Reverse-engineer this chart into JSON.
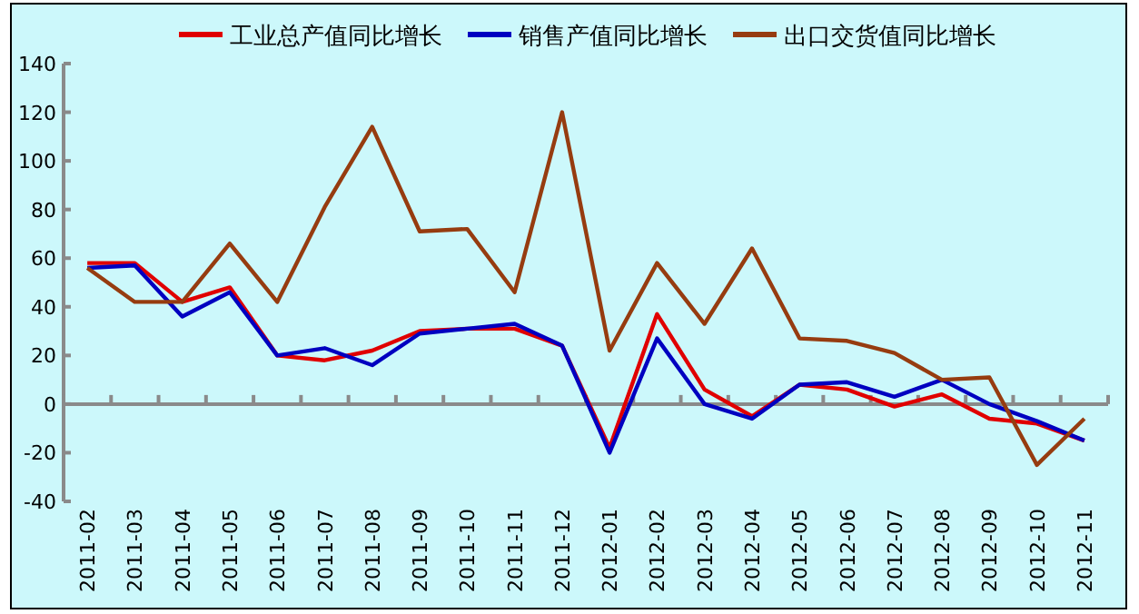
{
  "chart_data": {
    "type": "line",
    "categories": [
      "2011-02",
      "2011-03",
      "2011-04",
      "2011-05",
      "2011-06",
      "2011-07",
      "2011-08",
      "2011-09",
      "2011-10",
      "2011-11",
      "2011-12",
      "2012-01",
      "2012-02",
      "2012-03",
      "2012-04",
      "2012-05",
      "2012-06",
      "2012-07",
      "2012-08",
      "2012-09",
      "2012-10",
      "2012-11"
    ],
    "series": [
      {
        "name": "工业总产值同比增长",
        "color": "#e00000",
        "values": [
          58,
          58,
          42,
          48,
          20,
          18,
          22,
          30,
          31,
          31,
          24,
          -18,
          37,
          6,
          -5,
          8,
          6,
          -1,
          4,
          -6,
          -8,
          -15
        ]
      },
      {
        "name": "销售产值同比增长",
        "color": "#0000c0",
        "values": [
          56,
          57,
          36,
          46,
          20,
          23,
          16,
          29,
          31,
          33,
          24,
          -20,
          27,
          0,
          -6,
          8,
          9,
          3,
          10,
          0,
          -7,
          -15
        ]
      },
      {
        "name": "出口交货值同比增长",
        "color": "#963c10",
        "values": [
          56,
          42,
          42,
          66,
          42,
          81,
          114,
          71,
          72,
          46,
          120,
          22,
          58,
          33,
          64,
          27,
          26,
          21,
          10,
          11,
          -25,
          -6
        ]
      }
    ],
    "ylim": [
      -40,
      140
    ],
    "yticks": [
      -40,
      -20,
      0,
      20,
      40,
      60,
      80,
      100,
      120,
      140
    ],
    "legend": "top",
    "marker": "none",
    "line_style": "solid"
  }
}
